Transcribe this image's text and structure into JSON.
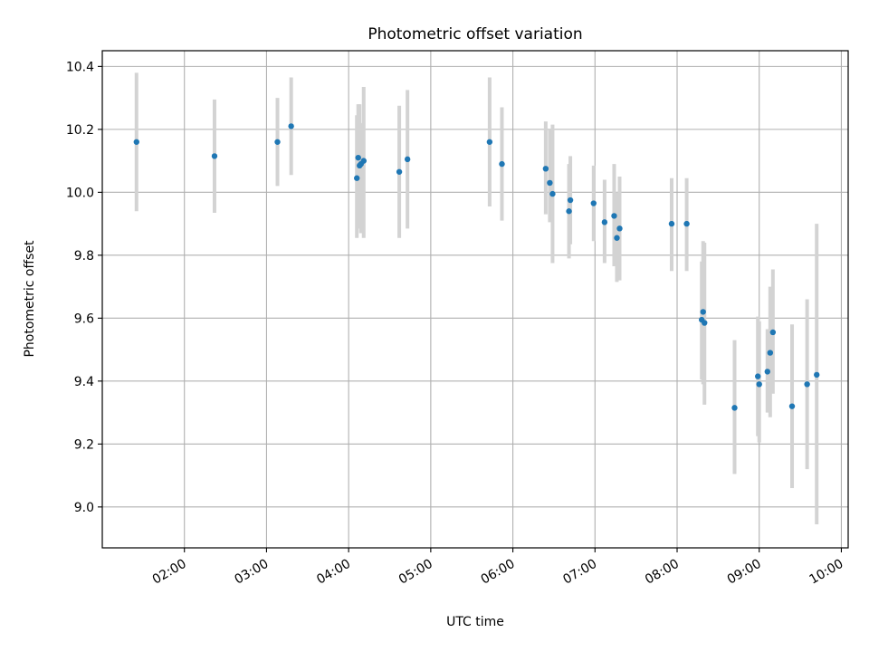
{
  "chart_data": {
    "type": "scatter",
    "title": "Photometric offset variation",
    "xlabel": "UTC time",
    "ylabel": "Photometric offset",
    "xlim": [
      "01:00",
      "10:05"
    ],
    "ylim": [
      8.87,
      10.45
    ],
    "x_ticks": [
      "02:00",
      "03:00",
      "04:00",
      "05:00",
      "06:00",
      "07:00",
      "08:00",
      "09:00",
      "10:00"
    ],
    "y_ticks": [
      "9.0",
      "9.2",
      "9.4",
      "9.6",
      "9.8",
      "10.0",
      "10.2",
      "10.4"
    ],
    "grid": true,
    "errorbars": true,
    "point_color": "#1f77b4",
    "errorbar_color": "#d3d3d3",
    "points": [
      {
        "x": "01:25",
        "y": 10.16,
        "ylow": 9.94,
        "yhigh": 10.38
      },
      {
        "x": "02:22",
        "y": 10.115,
        "ylow": 9.935,
        "yhigh": 10.295
      },
      {
        "x": "03:08",
        "y": 10.16,
        "ylow": 10.02,
        "yhigh": 10.3
      },
      {
        "x": "03:18",
        "y": 10.21,
        "ylow": 10.055,
        "yhigh": 10.365
      },
      {
        "x": "04:06",
        "y": 10.045,
        "ylow": 9.855,
        "yhigh": 10.245
      },
      {
        "x": "04:07",
        "y": 10.11,
        "ylow": 9.93,
        "yhigh": 10.28
      },
      {
        "x": "04:08",
        "y": 10.085,
        "ylow": 9.885,
        "yhigh": 10.28
      },
      {
        "x": "04:09",
        "y": 10.09,
        "ylow": 9.87,
        "yhigh": 10.22
      },
      {
        "x": "04:11",
        "y": 10.1,
        "ylow": 9.855,
        "yhigh": 10.335
      },
      {
        "x": "04:37",
        "y": 10.065,
        "ylow": 9.855,
        "yhigh": 10.275
      },
      {
        "x": "04:43",
        "y": 10.105,
        "ylow": 9.885,
        "yhigh": 10.325
      },
      {
        "x": "05:43",
        "y": 10.16,
        "ylow": 9.955,
        "yhigh": 10.365
      },
      {
        "x": "05:52",
        "y": 10.09,
        "ylow": 9.91,
        "yhigh": 10.27
      },
      {
        "x": "06:24",
        "y": 10.075,
        "ylow": 9.93,
        "yhigh": 10.225
      },
      {
        "x": "06:27",
        "y": 10.03,
        "ylow": 9.905,
        "yhigh": 10.2
      },
      {
        "x": "06:29",
        "y": 9.995,
        "ylow": 9.775,
        "yhigh": 10.215
      },
      {
        "x": "06:41",
        "y": 9.94,
        "ylow": 9.79,
        "yhigh": 10.09
      },
      {
        "x": "06:42",
        "y": 9.975,
        "ylow": 9.835,
        "yhigh": 10.115
      },
      {
        "x": "06:59",
        "y": 9.965,
        "ylow": 9.845,
        "yhigh": 10.085
      },
      {
        "x": "07:07",
        "y": 9.905,
        "ylow": 9.775,
        "yhigh": 10.04
      },
      {
        "x": "07:14",
        "y": 9.925,
        "ylow": 9.765,
        "yhigh": 10.09
      },
      {
        "x": "07:16",
        "y": 9.855,
        "ylow": 9.715,
        "yhigh": 10.0
      },
      {
        "x": "07:18",
        "y": 9.885,
        "ylow": 9.72,
        "yhigh": 10.05
      },
      {
        "x": "07:56",
        "y": 9.9,
        "ylow": 9.75,
        "yhigh": 10.045
      },
      {
        "x": "08:07",
        "y": 9.9,
        "ylow": 9.75,
        "yhigh": 10.045
      },
      {
        "x": "08:18",
        "y": 9.595,
        "ylow": 9.405,
        "yhigh": 9.78
      },
      {
        "x": "08:19",
        "y": 9.62,
        "ylow": 9.39,
        "yhigh": 9.845
      },
      {
        "x": "08:20",
        "y": 9.585,
        "ylow": 9.325,
        "yhigh": 9.84
      },
      {
        "x": "08:42",
        "y": 9.315,
        "ylow": 9.105,
        "yhigh": 9.53
      },
      {
        "x": "08:59",
        "y": 9.415,
        "ylow": 9.225,
        "yhigh": 9.605
      },
      {
        "x": "09:00",
        "y": 9.39,
        "ylow": 9.205,
        "yhigh": 9.59
      },
      {
        "x": "09:06",
        "y": 9.43,
        "ylow": 9.3,
        "yhigh": 9.565
      },
      {
        "x": "09:08",
        "y": 9.49,
        "ylow": 9.285,
        "yhigh": 9.7
      },
      {
        "x": "09:10",
        "y": 9.555,
        "ylow": 9.36,
        "yhigh": 9.755
      },
      {
        "x": "09:24",
        "y": 9.32,
        "ylow": 9.06,
        "yhigh": 9.58
      },
      {
        "x": "09:35",
        "y": 9.39,
        "ylow": 9.12,
        "yhigh": 9.66
      },
      {
        "x": "09:42",
        "y": 9.42,
        "ylow": 8.945,
        "yhigh": 9.9
      }
    ]
  }
}
